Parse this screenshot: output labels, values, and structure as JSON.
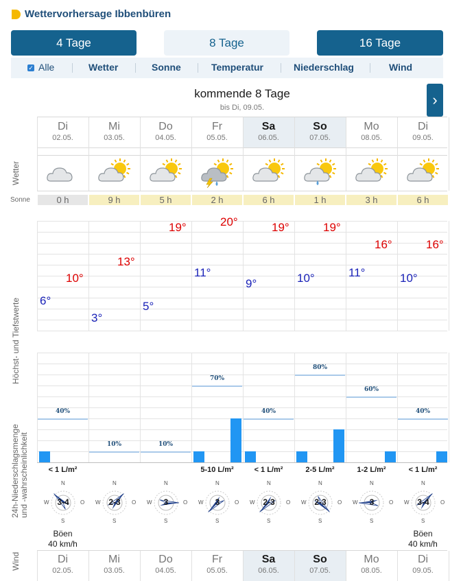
{
  "header": {
    "title": "Wettervorhersage Ibbenbüren"
  },
  "tabs": [
    {
      "label": "4 Tage"
    },
    {
      "label": "8 Tage"
    },
    {
      "label": "16 Tage"
    }
  ],
  "filters": [
    {
      "label": "Alle",
      "checked": true
    },
    {
      "label": "Wetter"
    },
    {
      "label": "Sonne"
    },
    {
      "label": "Temperatur"
    },
    {
      "label": "Niederschlag"
    },
    {
      "label": "Wind"
    }
  ],
  "period": {
    "title": "kommende 8 Tage",
    "subtitle": "bis Di, 09.05.",
    "next_icon": "chevron-right-icon",
    "next_glyph": "›"
  },
  "row_labels": {
    "wetter": "Wetter",
    "sonne": "Sonne",
    "temps": "Höchst- und Tiefstwerte",
    "precip": "24h-Niederschlagsmenge und -wahrscheinlichkeit",
    "wind": "Wind"
  },
  "colors": {
    "accent": "#15628e",
    "hi": "#dd0000",
    "lo": "#1a22b8",
    "rain": "#2196f3",
    "sun_yes": "#f7efbf",
    "sun_no": "#e6e6e6"
  },
  "days": [
    {
      "name": "Di",
      "date": "02.05.",
      "weekend": false,
      "icon": "cloud-icon",
      "sun": "0 h",
      "sun_hours": 0,
      "hi": "10°",
      "hi_val": 10,
      "lo": "6°",
      "lo_val": 6,
      "prob_label": "40%",
      "prob": 40,
      "rain_bars": [
        1,
        0
      ],
      "precip": "< 1 L/m²",
      "wind_dir": "NW",
      "wind_speed": "3-4",
      "gust_label": "Böen",
      "gust_value": "40 km/h"
    },
    {
      "name": "Mi",
      "date": "03.05.",
      "weekend": false,
      "icon": "partly-sunny-icon",
      "sun": "9 h",
      "sun_hours": 9,
      "hi": "13°",
      "hi_val": 13,
      "lo": "3°",
      "lo_val": 3,
      "prob_label": "10%",
      "prob": 10,
      "rain_bars": [
        0,
        0
      ],
      "precip": "",
      "wind_dir": "NE",
      "wind_speed": "2-3",
      "gust_label": "",
      "gust_value": ""
    },
    {
      "name": "Do",
      "date": "04.05.",
      "weekend": false,
      "icon": "partly-sunny-icon",
      "sun": "5 h",
      "sun_hours": 5,
      "hi": "19°",
      "hi_val": 19,
      "lo": "5°",
      "lo_val": 5,
      "prob_label": "10%",
      "prob": 10,
      "rain_bars": [
        0,
        0
      ],
      "precip": "",
      "wind_dir": "E",
      "wind_speed": "3",
      "gust_label": "",
      "gust_value": ""
    },
    {
      "name": "Fr",
      "date": "05.05.",
      "weekend": false,
      "icon": "thunderstorm-icon",
      "sun": "2 h",
      "sun_hours": 2,
      "hi": "20°",
      "hi_val": 20,
      "lo": "11°",
      "lo_val": 11,
      "prob_label": "70%",
      "prob": 70,
      "rain_bars": [
        1,
        4
      ],
      "precip": "5-10 L/m²",
      "wind_dir": "SW",
      "wind_speed": "3",
      "gust_label": "",
      "gust_value": ""
    },
    {
      "name": "Sa",
      "date": "06.05.",
      "weekend": true,
      "icon": "partly-sunny-icon",
      "sun": "6 h",
      "sun_hours": 6,
      "hi": "19°",
      "hi_val": 19,
      "lo": "9°",
      "lo_val": 9,
      "prob_label": "40%",
      "prob": 40,
      "rain_bars": [
        1,
        0
      ],
      "precip": "< 1 L/m²",
      "wind_dir": "SW",
      "wind_speed": "2-3",
      "gust_label": "",
      "gust_value": ""
    },
    {
      "name": "So",
      "date": "07.05.",
      "weekend": true,
      "icon": "light-rain-icon",
      "sun": "1 h",
      "sun_hours": 1,
      "hi": "19°",
      "hi_val": 19,
      "lo": "10°",
      "lo_val": 10,
      "prob_label": "80%",
      "prob": 80,
      "rain_bars": [
        1,
        3
      ],
      "precip": "2-5 L/m²",
      "wind_dir": "SE",
      "wind_speed": "2-3",
      "gust_label": "",
      "gust_value": ""
    },
    {
      "name": "Mo",
      "date": "08.05.",
      "weekend": false,
      "icon": "partly-sunny-icon",
      "sun": "3 h",
      "sun_hours": 3,
      "hi": "16°",
      "hi_val": 16,
      "lo": "11°",
      "lo_val": 11,
      "prob_label": "60%",
      "prob": 60,
      "rain_bars": [
        0,
        1
      ],
      "precip": "1-2 L/m²",
      "wind_dir": "W",
      "wind_speed": "3",
      "gust_label": "",
      "gust_value": ""
    },
    {
      "name": "Di",
      "date": "09.05.",
      "weekend": false,
      "icon": "partly-sunny-icon",
      "sun": "6 h",
      "sun_hours": 6,
      "hi": "16°",
      "hi_val": 16,
      "lo": "10°",
      "lo_val": 10,
      "prob_label": "40%",
      "prob": 40,
      "rain_bars": [
        0,
        1
      ],
      "precip": "< 1 L/m²",
      "wind_dir": "NE",
      "wind_speed": "3-4",
      "gust_label": "Böen",
      "gust_value": "40 km/h"
    }
  ],
  "compass": {
    "n": "N",
    "s": "S",
    "w": "W",
    "o": "O"
  }
}
